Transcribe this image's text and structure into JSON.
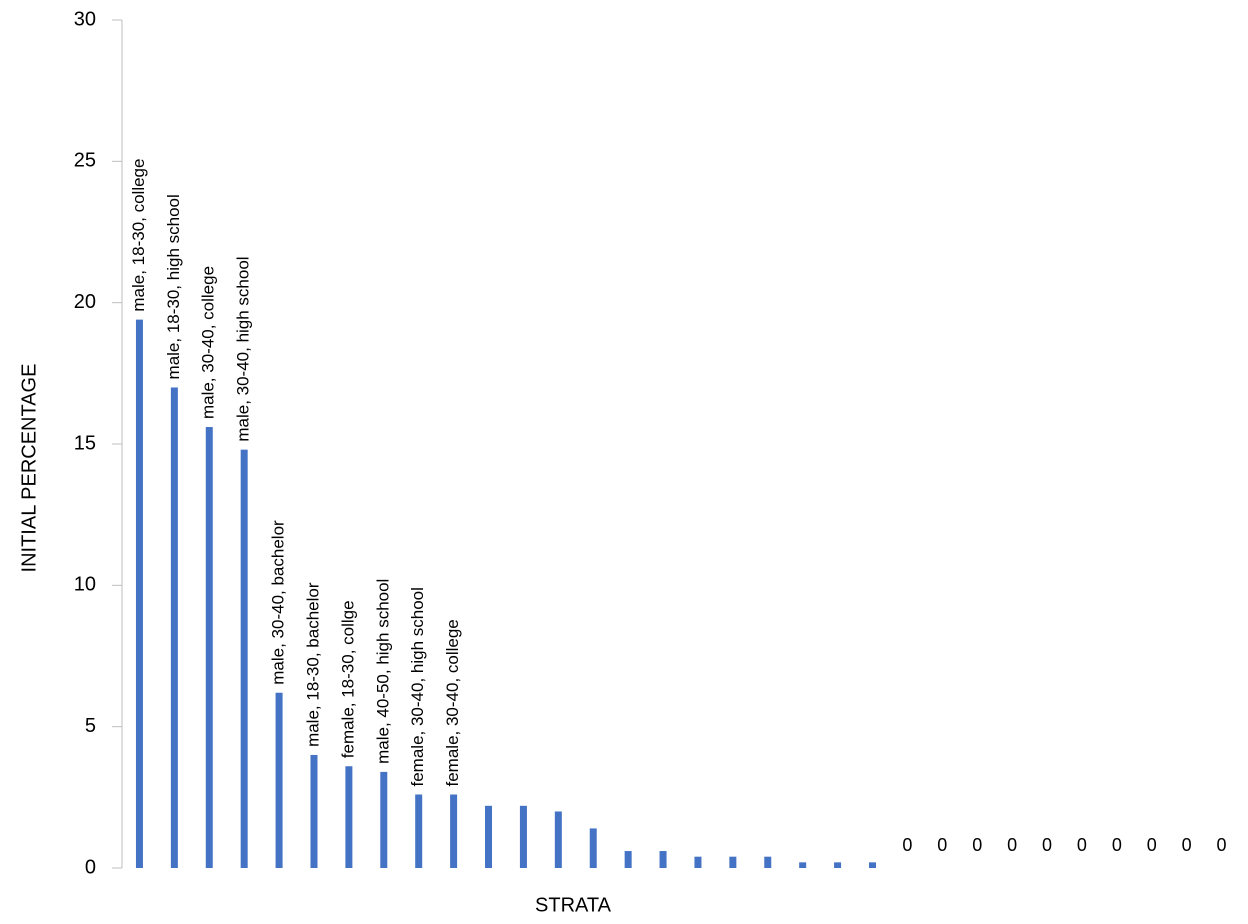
{
  "chart_data": {
    "type": "bar",
    "y_label": "INITIAL PERCENTAGE",
    "x_label": "STRATA",
    "categories": [
      "male, 18-30, college",
      "male, 18-30, high school",
      "male, 30-40, college",
      "male, 30-40, high school",
      "male, 30-40, bachelor",
      "male, 18-30, bachelor",
      "female, 18-30, collge",
      "male, 40-50, high school",
      "female, 30-40, high school",
      "female, 30-40, college",
      null,
      null,
      null,
      null,
      null,
      null,
      null,
      null,
      null,
      null,
      null,
      null,
      null,
      null,
      null,
      null,
      null,
      null,
      null,
      null,
      null,
      null
    ],
    "values": [
      19.4,
      17.0,
      15.6,
      14.8,
      6.2,
      4.0,
      3.6,
      3.4,
      2.6,
      2.6,
      2.2,
      2.2,
      2.0,
      1.4,
      0.6,
      0.6,
      0.4,
      0.4,
      0.4,
      0.2,
      0.2,
      0.2,
      0,
      0,
      0,
      0,
      0,
      0,
      0,
      0,
      0,
      0
    ],
    "value_labels": [
      null,
      null,
      null,
      null,
      null,
      null,
      null,
      null,
      null,
      null,
      null,
      null,
      null,
      null,
      null,
      null,
      null,
      null,
      null,
      null,
      null,
      null,
      "0",
      "0",
      "0",
      "0",
      "0",
      "0",
      "0",
      "0",
      "0",
      "0"
    ],
    "color": "#4472c4",
    "ylim": [
      0,
      30
    ],
    "yticks": [
      0,
      5,
      10,
      15,
      20,
      25,
      30
    ],
    "grid": false
  }
}
